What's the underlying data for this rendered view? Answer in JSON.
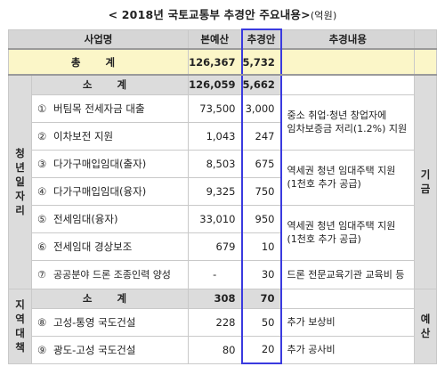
{
  "title": {
    "main": "< 2018년 국토교통부 추경안 주요내용>",
    "unit": "(억원)"
  },
  "headers": {
    "name": "사업명",
    "budget": "본예산",
    "supplement": "추경안",
    "content": "추경내용"
  },
  "total": {
    "label": "총 계",
    "budget": "126,367",
    "supplement": "5,732"
  },
  "groups": {
    "youth": {
      "label_chars": [
        "청",
        "년",
        "일",
        "자",
        "리"
      ]
    },
    "region": {
      "label_chars": [
        "지",
        "역",
        "대",
        "책"
      ]
    },
    "side_right_top": "기 금",
    "side_right_bottom": "예 산"
  },
  "youth_subtotal": {
    "label": "소 계",
    "budget": "126,059",
    "supplement": "5,662"
  },
  "youth_items": [
    {
      "no": "①",
      "name": "버팀목 전세자금 대출",
      "budget": "73,500",
      "supplement": "3,000"
    },
    {
      "no": "②",
      "name": "이차보전 지원",
      "budget": "1,043",
      "supplement": "247"
    },
    {
      "no": "③",
      "name": "다가구매입임대(출자)",
      "budget": "8,503",
      "supplement": "675"
    },
    {
      "no": "④",
      "name": "다가구매입임대(융자)",
      "budget": "9,325",
      "supplement": "750"
    },
    {
      "no": "⑤",
      "name": "전세임대(융자)",
      "budget": "33,010",
      "supplement": "950"
    },
    {
      "no": "⑥",
      "name": "전세임대 경상보조",
      "budget": "679",
      "supplement": "10"
    },
    {
      "no": "⑦",
      "name": "공공분야 드론 조종인력 양성",
      "budget": "-",
      "supplement": "30"
    }
  ],
  "youth_contents": {
    "c12": [
      "중소 취업·청년 창업자에",
      "임차보증금 저리(1.2%) 지원"
    ],
    "c34": [
      "역세권 청년 임대주택 지원",
      "(1천호 추가 공급)"
    ],
    "c56": [
      "역세권 청년 임대주택 지원",
      "(1천호 추가 공급)"
    ],
    "c7": "드론 전문교육기관 교육비 등"
  },
  "region_subtotal": {
    "label": "소 계",
    "budget": "308",
    "supplement": "70"
  },
  "region_items": [
    {
      "no": "⑧",
      "name": "고성-통영 국도건설",
      "budget": "228",
      "supplement": "50",
      "content": "추가 보상비"
    },
    {
      "no": "⑨",
      "name": "광도-고성 국도건설",
      "budget": "80",
      "supplement": "20",
      "content": "추가 공사비"
    }
  ]
}
